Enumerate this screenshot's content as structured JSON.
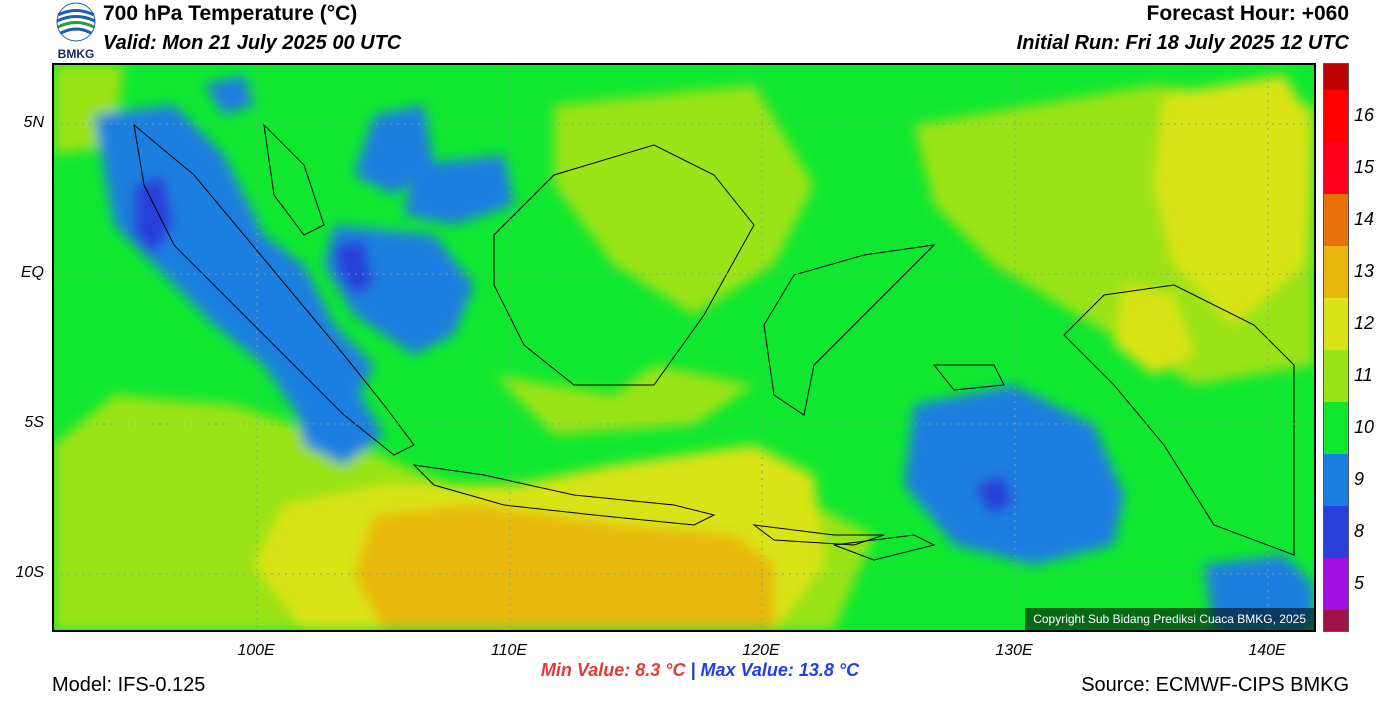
{
  "header": {
    "logo_text": "BMKG",
    "title": "700 hPa Temperature (°C)",
    "valid": "Valid: Mon 21 July 2025 00 UTC",
    "forecast_hour": "Forecast Hour: +060",
    "initial_run": "Initial Run: Fri 18 July 2025 12 UTC"
  },
  "map": {
    "lat_labels": [
      "5N",
      "EQ",
      "5S",
      "10S"
    ],
    "lon_labels": [
      "100E",
      "110E",
      "120E",
      "130E",
      "140E"
    ],
    "copyright": "Copyright Sub Bidang Prediksi Cuaca BMKG, 2025"
  },
  "colorbar": {
    "labels": [
      "16",
      "15",
      "14",
      "13",
      "12",
      "11",
      "10",
      "9",
      "8",
      "5"
    ],
    "colors": [
      "#c00000",
      "#ff0000",
      "#f00010",
      "#e8700a",
      "#e8b80f",
      "#d9e317",
      "#9ae317",
      "#10e830",
      "#1a7fe0",
      "#2840d8",
      "#a010e0",
      "#a0104a"
    ]
  },
  "stats": {
    "min": "Min Value: 8.3 °C",
    "separator": "|",
    "max": "Max Value: 13.8 °C"
  },
  "footer": {
    "model": "Model: IFS-0.125",
    "source": "Source: ECMWF-CIPS BMKG"
  }
}
